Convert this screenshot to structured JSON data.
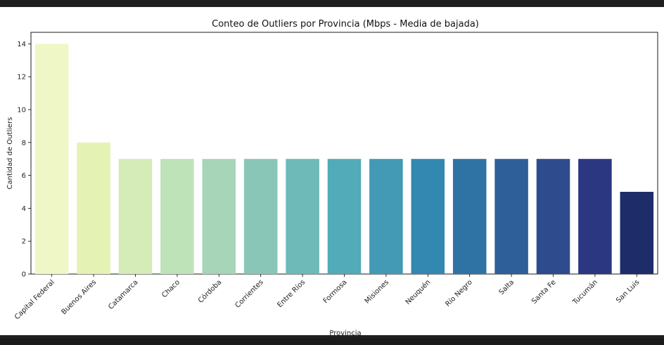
{
  "chart_data": {
    "type": "bar",
    "title": "Conteo de Outliers por Provincia (Mbps - Media de bajada)",
    "xlabel": "Provincia",
    "ylabel": "Cantidad de Outliers",
    "categories": [
      "Capital Federal",
      "Buenos Aires",
      "Catamarca",
      "Chaco",
      "Córdoba",
      "Corrientes",
      "Entre Ríos",
      "Formosa",
      "Misiones",
      "Neuquén",
      "Río Negro",
      "Salta",
      "Santa Fe",
      "Tucumán",
      "San Luis"
    ],
    "values": [
      14,
      8,
      7,
      7,
      7,
      7,
      7,
      7,
      7,
      7,
      7,
      7,
      7,
      7,
      5
    ],
    "colors": [
      "#eff7c6",
      "#e4f3b4",
      "#d5ebb8",
      "#bfe3b9",
      "#a6d5b8",
      "#89c6b8",
      "#6dbab8",
      "#52abb8",
      "#429ab4",
      "#3288b0",
      "#2f73a5",
      "#2e5f98",
      "#2d4b8d",
      "#2b3781",
      "#1f2c6a"
    ],
    "yticks": [
      0,
      2,
      4,
      6,
      8,
      10,
      12,
      14
    ],
    "ylim": [
      0,
      14.7
    ],
    "grid": false
  }
}
